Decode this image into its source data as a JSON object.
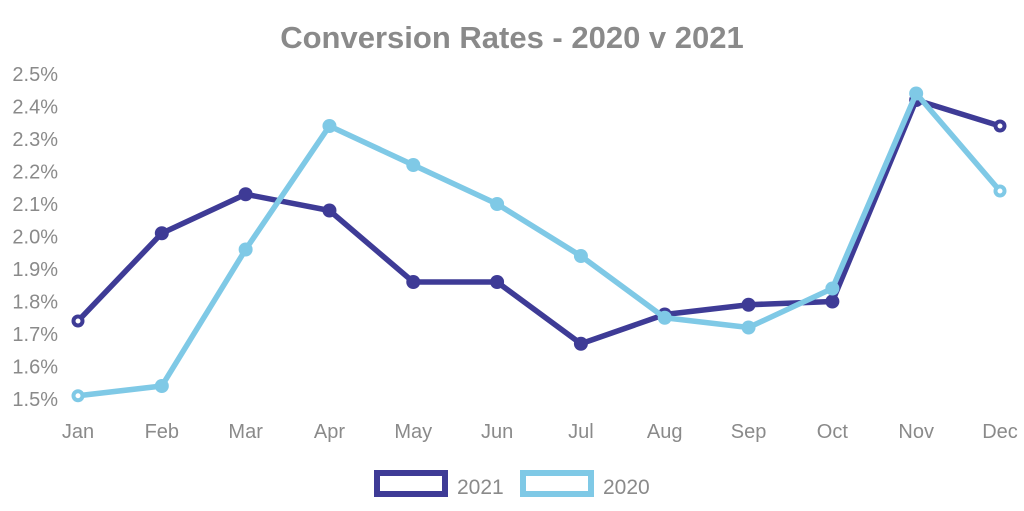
{
  "chart_data": {
    "type": "line",
    "title": "Conversion Rates - 2020 v 2021",
    "categories": [
      "Jan",
      "Feb",
      "Mar",
      "Apr",
      "May",
      "Jun",
      "Jul",
      "Aug",
      "Sep",
      "Oct",
      "Nov",
      "Dec"
    ],
    "series": [
      {
        "name": "2021",
        "color": "#3E3B96",
        "values": [
          1.74,
          2.01,
          2.13,
          2.08,
          1.86,
          1.86,
          1.67,
          1.76,
          1.79,
          1.8,
          2.42,
          2.34
        ]
      },
      {
        "name": "2020",
        "color": "#7FC9E6",
        "values": [
          1.51,
          1.54,
          1.96,
          2.34,
          2.22,
          2.1,
          1.94,
          1.75,
          1.72,
          1.84,
          2.44,
          2.14
        ]
      }
    ],
    "y_ticks": [
      "2.5%",
      "2.4%",
      "2.3%",
      "2.2%",
      "2.1%",
      "2.0%",
      "1.9%",
      "1.8%",
      "1.7%",
      "1.6%",
      "1.5%"
    ],
    "ylim": [
      1.5,
      2.5
    ],
    "y_unit": "%",
    "grid": false,
    "legend_position": "bottom",
    "marker_style": "circle, hollow at first and last point",
    "text_color": "#8A8A8A",
    "background_color": "#FFFFFF"
  }
}
